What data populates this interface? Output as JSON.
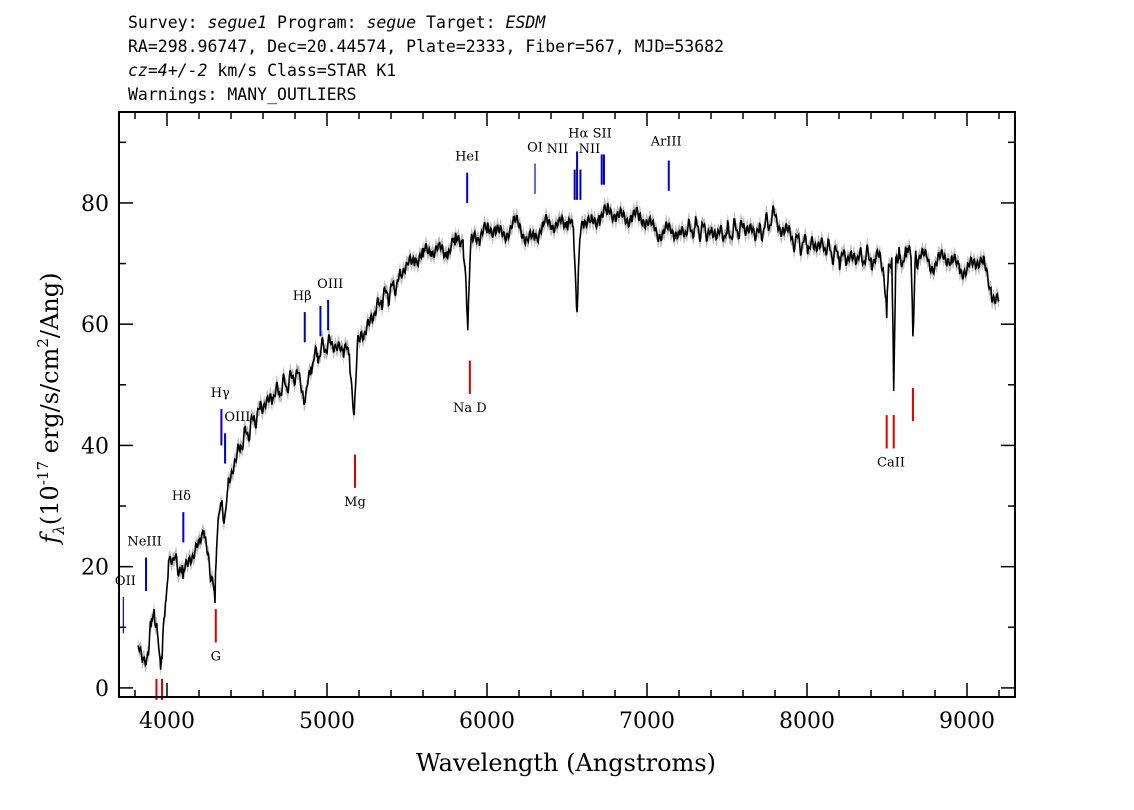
{
  "header": {
    "line1_a": "Survey: ",
    "line1_b": "segue1",
    "line1_c": " Program: ",
    "line1_d": "segue",
    "line1_e": " Target: ",
    "line1_f": "ESDM",
    "line2": "RA=298.96747, Dec=20.44574, Plate=2333, Fiber=567, MJD=53682",
    "line3_a": "cz=4+/-2",
    "line3_b": " km/s Class=STAR K1",
    "line4": "Warnings: MANY_OUTLIERS"
  },
  "colors": {
    "emission": "#0000cc",
    "absorption": "#dd0000",
    "spectrum": "#000000",
    "error": "#bbbbbb"
  },
  "chart_data": {
    "type": "line",
    "xlabel": "Wavelength (Angstroms)",
    "ylabel_main": "f",
    "ylabel_sub": "λ",
    "ylabel_paren_open": "(10",
    "ylabel_exp": "-17",
    "ylabel_unit_a": " erg/s/cm",
    "ylabel_unit_exp": "2",
    "ylabel_unit_b": "/Ang)",
    "xlim": [
      3700,
      9300
    ],
    "ylim": [
      -1.5,
      95
    ],
    "xticks": [
      "4000",
      "5000",
      "6000",
      "7000",
      "8000",
      "9000"
    ],
    "xtick_values": [
      4000,
      5000,
      6000,
      7000,
      8000,
      9000
    ],
    "yticks": [
      "0",
      "20",
      "40",
      "60",
      "80"
    ],
    "ytick_values": [
      0,
      20,
      40,
      60,
      80
    ],
    "series": [
      {
        "x": [
          3820,
          3850,
          3880,
          3900,
          3920,
          3940,
          3960,
          3970,
          3990,
          4010,
          4040,
          4080,
          4100,
          4130,
          4160,
          4200,
          4230,
          4260,
          4300,
          4310,
          4320,
          4340,
          4360,
          4380,
          4420,
          4460,
          4500,
          4540,
          4580,
          4620,
          4660,
          4700,
          4740,
          4780,
          4820,
          4860,
          4900,
          4940,
          4980,
          5020,
          5060,
          5100,
          5140,
          5170,
          5190,
          5220,
          5260,
          5300,
          5340,
          5380,
          5420,
          5460,
          5500,
          5550,
          5600,
          5650,
          5700,
          5750,
          5800,
          5850,
          5870,
          5880,
          5893,
          5900,
          5920,
          5950,
          6000,
          6050,
          6100,
          6150,
          6200,
          6250,
          6300,
          6350,
          6400,
          6450,
          6500,
          6540,
          6563,
          6580,
          6600,
          6650,
          6700,
          6750,
          6800,
          6850,
          6900,
          6950,
          7000,
          7050,
          7100,
          7150,
          7200,
          7300,
          7400,
          7500,
          7600,
          7700,
          7800,
          7850,
          7900,
          8000,
          8100,
          8200,
          8300,
          8400,
          8450,
          8480,
          8498,
          8510,
          8530,
          8542,
          8555,
          8580,
          8620,
          8650,
          8662,
          8675,
          8700,
          8750,
          8800,
          8850,
          8900,
          8950,
          9000,
          9050,
          9100,
          9150,
          9200
        ],
        "y": [
          7,
          5,
          6,
          10,
          13,
          9,
          3,
          5,
          14,
          21,
          21,
          20,
          18,
          20,
          22,
          24,
          26,
          22,
          14,
          23,
          28,
          30,
          28,
          33,
          37,
          40,
          42,
          44,
          46,
          47,
          48,
          49,
          50,
          51,
          52,
          47,
          53,
          55,
          56,
          57,
          56,
          56,
          55,
          45,
          57,
          58,
          60,
          62,
          64,
          65,
          66,
          68,
          70,
          71,
          71,
          72,
          73,
          72,
          73,
          74,
          66,
          59,
          70,
          74,
          75,
          74,
          75,
          76,
          75,
          76,
          76,
          74,
          75,
          76,
          76,
          77,
          77,
          76,
          62,
          74,
          77,
          77,
          78,
          78,
          78,
          78,
          78,
          77,
          77,
          76,
          75,
          75,
          75,
          76,
          75,
          75,
          76,
          75,
          78,
          76,
          74,
          73,
          73,
          71,
          71,
          71,
          71,
          68,
          61,
          70,
          71,
          49,
          71,
          71,
          71,
          71,
          58,
          70,
          71,
          71,
          70,
          71,
          70,
          70,
          69,
          70,
          70,
          66,
          64
        ],
        "error_band": 1.2
      }
    ],
    "annotations": {
      "emission": [
        {
          "label": "OII",
          "wave": 3727,
          "y1": 9,
          "y2": 15,
          "lx": 3740,
          "ly": 17
        },
        {
          "label": "NeIII",
          "wave": 3869,
          "y1": 16,
          "y2": 21.5,
          "lx": 3860,
          "ly": 23.5
        },
        {
          "label": "Hδ",
          "wave": 4102,
          "y1": 24,
          "y2": 29,
          "lx": 4090,
          "ly": 31
        },
        {
          "label": "Hγ",
          "wave": 4340,
          "y1": 40,
          "y2": 46,
          "lx": 4333,
          "ly": 48
        },
        {
          "label": "OIII",
          "wave": 4363,
          "y1": 37,
          "y2": 42,
          "lx": 4440,
          "ly": 44
        },
        {
          "label": "Hβ",
          "wave": 4861,
          "y1": 57,
          "y2": 62,
          "lx": 4845,
          "ly": 64
        },
        {
          "label": "OIII",
          "wave": 4959,
          "y1": 58,
          "y2": 63,
          "lx": 5020,
          "ly": 66
        },
        {
          "label": "OIII",
          "wave": 5007,
          "y1": 59,
          "y2": 64,
          "lx": 5020,
          "ly": 66,
          "nolabel": true
        },
        {
          "label": "HeI",
          "wave": 5876,
          "y1": 80,
          "y2": 85,
          "lx": 5876,
          "ly": 87
        },
        {
          "label": "OI",
          "wave": 6300,
          "y1": 81.5,
          "y2": 86.5,
          "lx": 6300,
          "ly": 88.5
        },
        {
          "label": "NII",
          "wave": 6548,
          "y1": 80.5,
          "y2": 85.5,
          "lx": 6440,
          "ly": 88.2
        },
        {
          "label": "Hα",
          "wave": 6563,
          "y1": 80.5,
          "y2": 88.5,
          "lx": 6570,
          "ly": 90.8
        },
        {
          "label": "NII",
          "wave": 6584,
          "y1": 80.5,
          "y2": 85.5,
          "lx": 6640,
          "ly": 88.2
        },
        {
          "label": "SII",
          "wave": 6717,
          "y1": 83,
          "y2": 88,
          "lx": 6720,
          "ly": 90.8
        },
        {
          "label": "SII",
          "wave": 6731,
          "y1": 83,
          "y2": 88,
          "lx": 6720,
          "ly": 90.8,
          "nolabel": true
        },
        {
          "label": "ArIII",
          "wave": 7136,
          "y1": 82,
          "y2": 87,
          "lx": 7120,
          "ly": 89.5
        }
      ],
      "absorption": [
        {
          "label": "",
          "wave": 3934,
          "y1": -2,
          "y2": 1.5,
          "lx": 3934,
          "ly": 0,
          "nolabel": true
        },
        {
          "label": "",
          "wave": 3969,
          "y1": -2,
          "y2": 1.5,
          "lx": 3969,
          "ly": 0,
          "nolabel": true
        },
        {
          "label": "G",
          "wave": 4305,
          "y1": 7.5,
          "y2": 13,
          "lx": 4305,
          "ly": 4.5
        },
        {
          "label": "Mg",
          "wave": 5175,
          "y1": 33,
          "y2": 38.5,
          "lx": 5175,
          "ly": 30
        },
        {
          "label": "Na D",
          "wave": 5893,
          "y1": 48.5,
          "y2": 54,
          "lx": 5893,
          "ly": 45.5
        },
        {
          "label": "CaII",
          "wave": 8498,
          "y1": 39.5,
          "y2": 45,
          "lx": 8525,
          "ly": 36.5
        },
        {
          "label": "CaII",
          "wave": 8542,
          "y1": 39.5,
          "y2": 45,
          "lx": 8525,
          "ly": 36.5,
          "nolabel": true
        },
        {
          "label": "CaII",
          "wave": 8662,
          "y1": 44,
          "y2": 49.5,
          "lx": 8662,
          "ly": 36.5,
          "nolabel": true
        }
      ]
    }
  }
}
